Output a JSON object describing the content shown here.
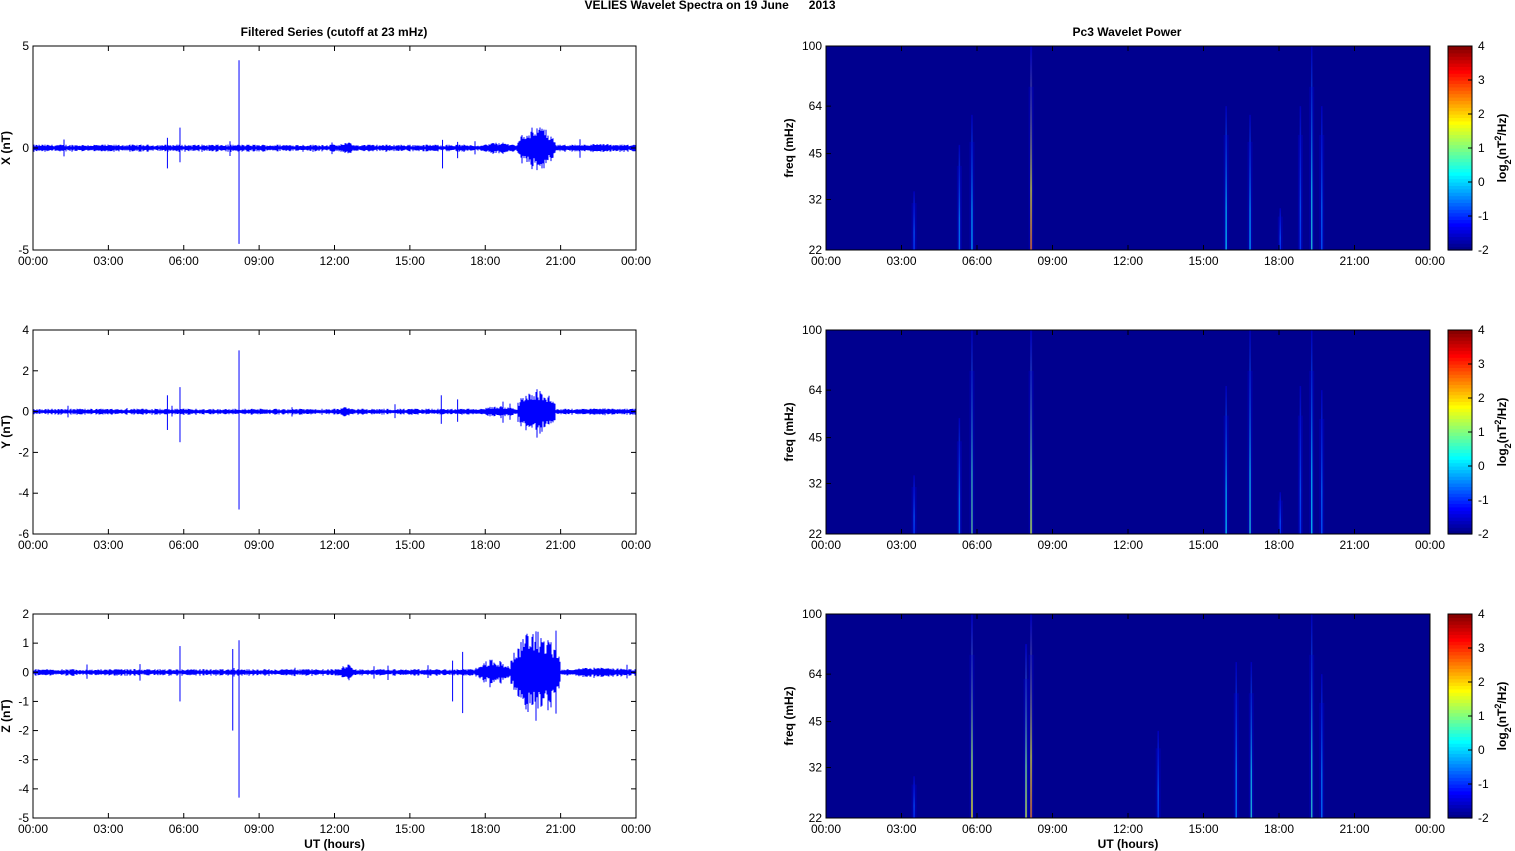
{
  "figure": {
    "title": "VELIES Wavelet Spectra on 19 June      2013",
    "left_title": "Filtered Series (cutoff at 23 mHz)",
    "right_title": "Pc3 Wavelet Power",
    "colors": {
      "trace": "#0000ff",
      "background": "#00008f",
      "axis": "#000000"
    }
  },
  "chart_data": [
    {
      "type": "line",
      "panel": "time-series-x",
      "ylabel": "X (nT)",
      "xlabel": "",
      "ylim": [
        -5,
        5
      ],
      "yticks": [
        "-5",
        "0",
        "5"
      ],
      "xticks": [
        "00:00",
        "03:00",
        "06:00",
        "09:00",
        "12:00",
        "15:00",
        "18:00",
        "21:00",
        "00:00"
      ],
      "xlim_hours": [
        0,
        24
      ],
      "noise_amplitude": 0.12,
      "spikes": [
        {
          "t": 5.35,
          "min": -1.0,
          "max": 0.5
        },
        {
          "t": 5.85,
          "min": -0.7,
          "max": 1.0
        },
        {
          "t": 8.2,
          "min": -4.7,
          "max": 4.3
        },
        {
          "t": 16.3,
          "min": -1.0,
          "max": 0.4
        },
        {
          "t": 16.9,
          "min": -0.5,
          "max": 0.3
        }
      ],
      "bursts": [
        {
          "start": 12.2,
          "end": 12.8,
          "amp": 0.3
        },
        {
          "start": 17.8,
          "end": 19.3,
          "amp": 0.25
        },
        {
          "start": 19.3,
          "end": 20.8,
          "amp": 1.0
        },
        {
          "start": 21.2,
          "end": 24.0,
          "amp": 0.18
        }
      ]
    },
    {
      "type": "line",
      "panel": "time-series-y",
      "ylabel": "Y (nT)",
      "xlabel": "",
      "ylim": [
        -6,
        4
      ],
      "yticks": [
        "-6",
        "-4",
        "-2",
        "0",
        "2",
        "4"
      ],
      "xticks": [
        "00:00",
        "03:00",
        "06:00",
        "09:00",
        "12:00",
        "15:00",
        "18:00",
        "21:00",
        "00:00"
      ],
      "xlim_hours": [
        0,
        24
      ],
      "noise_amplitude": 0.1,
      "spikes": [
        {
          "t": 5.35,
          "min": -0.9,
          "max": 0.8
        },
        {
          "t": 5.85,
          "min": -1.5,
          "max": 1.2
        },
        {
          "t": 8.2,
          "min": -4.8,
          "max": 3.0
        },
        {
          "t": 16.25,
          "min": -0.6,
          "max": 0.8
        },
        {
          "t": 16.9,
          "min": -0.5,
          "max": 0.6
        }
      ],
      "bursts": [
        {
          "start": 12.2,
          "end": 12.8,
          "amp": 0.25
        },
        {
          "start": 17.8,
          "end": 19.3,
          "amp": 0.25
        },
        {
          "start": 19.3,
          "end": 20.8,
          "amp": 1.1
        },
        {
          "start": 21.2,
          "end": 24.0,
          "amp": 0.15
        }
      ]
    },
    {
      "type": "line",
      "panel": "time-series-z",
      "ylabel": "Z (nT)",
      "xlabel": "UT (hours)",
      "ylim": [
        -5,
        2
      ],
      "yticks": [
        "-5",
        "-4",
        "-3",
        "-2",
        "-1",
        "0",
        "1",
        "2"
      ],
      "xticks": [
        "00:00",
        "03:00",
        "06:00",
        "09:00",
        "12:00",
        "15:00",
        "18:00",
        "21:00",
        "00:00"
      ],
      "xlim_hours": [
        0,
        24
      ],
      "noise_amplitude": 0.08,
      "spikes": [
        {
          "t": 5.85,
          "min": -1.0,
          "max": 0.9
        },
        {
          "t": 7.95,
          "min": -2.0,
          "max": 0.8
        },
        {
          "t": 8.2,
          "min": -4.3,
          "max": 1.1
        },
        {
          "t": 16.7,
          "min": -1.0,
          "max": 0.4
        },
        {
          "t": 17.1,
          "min": -1.4,
          "max": 0.7
        }
      ],
      "bursts": [
        {
          "start": 12.2,
          "end": 12.8,
          "amp": 0.25
        },
        {
          "start": 17.6,
          "end": 19.0,
          "amp": 0.4
        },
        {
          "start": 19.0,
          "end": 21.0,
          "amp": 1.3
        },
        {
          "start": 21.0,
          "end": 24.0,
          "amp": 0.15
        }
      ]
    },
    {
      "type": "heatmap",
      "panel": "wavelet-x",
      "ylabel": "freq (mHz)",
      "xlabel": "",
      "yticks": [
        "22",
        "32",
        "45",
        "64",
        "100"
      ],
      "ylim_mhz": [
        22,
        100
      ],
      "yscale": "log",
      "xticks": [
        "00:00",
        "03:00",
        "06:00",
        "09:00",
        "12:00",
        "15:00",
        "18:00",
        "21:00",
        "00:00"
      ],
      "xlim_hours": [
        0,
        24
      ],
      "colorbar": {
        "label": "log2(nT2/Hz)",
        "ticks": [
          "-2",
          "-1",
          "0",
          "1",
          "2",
          "3",
          "4"
        ],
        "range": [
          -2,
          4
        ]
      },
      "features": [
        {
          "t": 3.5,
          "f_top": 34,
          "level": -0.8
        },
        {
          "t": 5.3,
          "f_top": 48,
          "level": -0.3
        },
        {
          "t": 5.8,
          "f_top": 60,
          "level": 0.0
        },
        {
          "t": 8.15,
          "f_top": 100,
          "level": 2.5
        },
        {
          "t": 15.9,
          "f_top": 64,
          "level": 0.3
        },
        {
          "t": 16.85,
          "f_top": 60,
          "level": 0.0
        },
        {
          "t": 18.05,
          "f_top": 30,
          "level": -0.9
        },
        {
          "t": 18.85,
          "f_top": 64,
          "level": -0.8
        },
        {
          "t": 19.3,
          "f_top": 100,
          "level": 0.5
        },
        {
          "t": 19.7,
          "f_top": 64,
          "level": -0.6
        }
      ]
    },
    {
      "type": "heatmap",
      "panel": "wavelet-y",
      "ylabel": "freq (mHz)",
      "xlabel": "",
      "yticks": [
        "22",
        "32",
        "45",
        "64",
        "100"
      ],
      "ylim_mhz": [
        22,
        100
      ],
      "yscale": "log",
      "xticks": [
        "00:00",
        "03:00",
        "06:00",
        "09:00",
        "12:00",
        "15:00",
        "18:00",
        "21:00",
        "00:00"
      ],
      "xlim_hours": [
        0,
        24
      ],
      "colorbar": {
        "label": "log2(nT2/Hz)",
        "ticks": [
          "-2",
          "-1",
          "0",
          "1",
          "2",
          "3",
          "4"
        ],
        "range": [
          -2,
          4
        ]
      },
      "features": [
        {
          "t": 3.5,
          "f_top": 34,
          "level": -0.8
        },
        {
          "t": 5.3,
          "f_top": 52,
          "level": -0.3
        },
        {
          "t": 5.8,
          "f_top": 100,
          "level": 1.0
        },
        {
          "t": 8.15,
          "f_top": 100,
          "level": 1.5
        },
        {
          "t": 15.9,
          "f_top": 66,
          "level": 0.3
        },
        {
          "t": 16.85,
          "f_top": 100,
          "level": 0.5
        },
        {
          "t": 18.05,
          "f_top": 30,
          "level": -0.9
        },
        {
          "t": 18.85,
          "f_top": 66,
          "level": -0.8
        },
        {
          "t": 19.3,
          "f_top": 100,
          "level": 0.3
        },
        {
          "t": 19.7,
          "f_top": 64,
          "level": -0.6
        }
      ]
    },
    {
      "type": "heatmap",
      "panel": "wavelet-z",
      "ylabel": "freq (mHz)",
      "xlabel": "UT (hours)",
      "yticks": [
        "22",
        "32",
        "45",
        "64",
        "100"
      ],
      "ylim_mhz": [
        22,
        100
      ],
      "yscale": "log",
      "xticks": [
        "00:00",
        "03:00",
        "06:00",
        "09:00",
        "12:00",
        "15:00",
        "18:00",
        "21:00",
        "00:00"
      ],
      "xlim_hours": [
        0,
        24
      ],
      "colorbar": {
        "label": "log2(nT2/Hz)",
        "ticks": [
          "-2",
          "-1",
          "0",
          "1",
          "2",
          "3",
          "4"
        ],
        "range": [
          -2,
          4
        ]
      },
      "features": [
        {
          "t": 3.5,
          "f_top": 30,
          "level": -0.9
        },
        {
          "t": 5.8,
          "f_top": 100,
          "level": 1.8
        },
        {
          "t": 7.95,
          "f_top": 80,
          "level": 1.5
        },
        {
          "t": 8.15,
          "f_top": 100,
          "level": 2.5
        },
        {
          "t": 13.2,
          "f_top": 42,
          "level": -0.8
        },
        {
          "t": 16.3,
          "f_top": 70,
          "level": -0.3
        },
        {
          "t": 16.9,
          "f_top": 70,
          "level": 0.5
        },
        {
          "t": 19.3,
          "f_top": 100,
          "level": 0.6
        },
        {
          "t": 19.7,
          "f_top": 64,
          "level": -0.4
        }
      ]
    }
  ]
}
